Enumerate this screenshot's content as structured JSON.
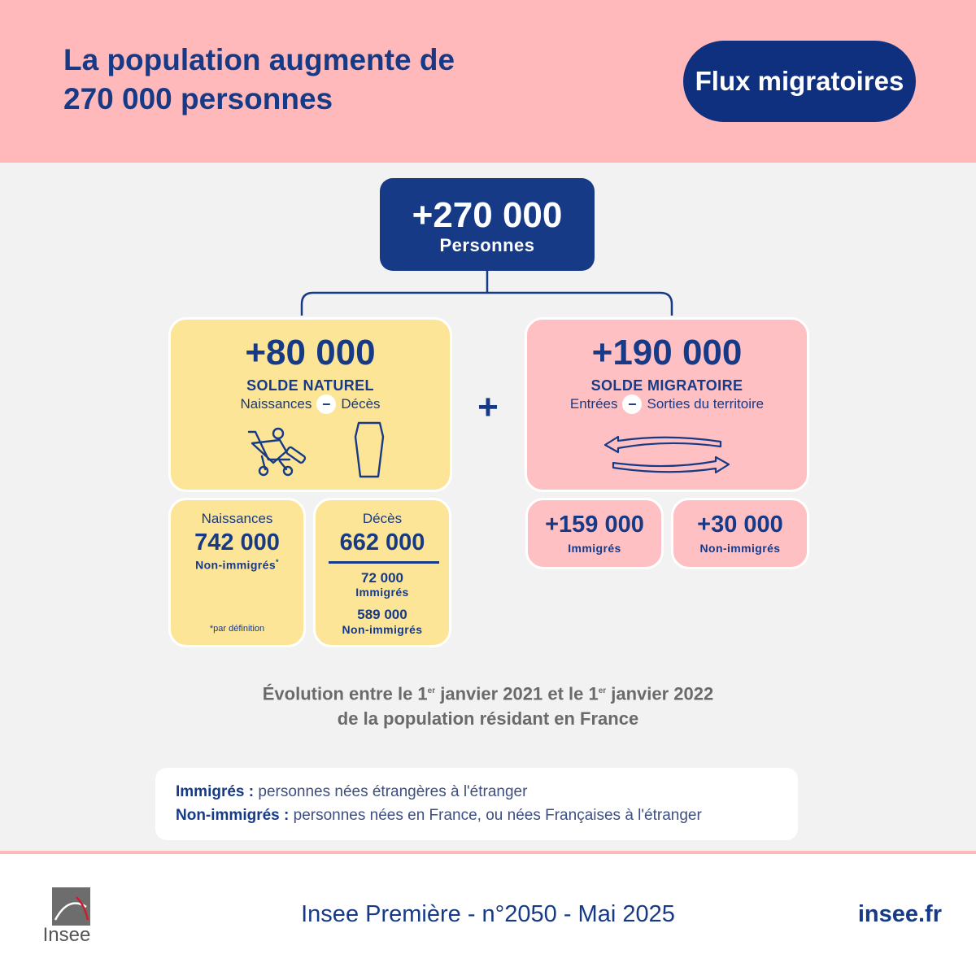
{
  "header": {
    "title_line1": "La population augmente de",
    "title_line2": "270 000 personnes",
    "topic": "Flux migratoires"
  },
  "total": {
    "value": "+270 000",
    "label": "Personnes"
  },
  "natural": {
    "value": "+80 000",
    "caption": "SOLDE NATUREL",
    "formula_left": "Naissances",
    "formula_op": "–",
    "formula_right": "Décès",
    "icons": [
      "stroller-icon",
      "coffin-icon"
    ]
  },
  "plus": "+",
  "migration": {
    "value": "+190 000",
    "caption": "SOLDE MIGRATOIRE",
    "formula_left": "Entrées",
    "formula_op": "–",
    "formula_right": "Sorties du territoire",
    "icons": [
      "exchange-arrows-icon"
    ]
  },
  "births": {
    "head": "Naissances",
    "value": "742 000",
    "label": "Non-immigrés",
    "label_mark": "*",
    "note": "*par définition"
  },
  "deaths": {
    "head": "Décès",
    "value": "662 000",
    "immigrants_value": "72 000",
    "immigrants_label": "Immigrés",
    "non_immigrants_value": "589 000",
    "non_immigrants_label": "Non-immigrés"
  },
  "immigrants_flow": {
    "value": "+159 000",
    "label": "Immigrés"
  },
  "non_immigrants_flow": {
    "value": "+30 000",
    "label": "Non-immigrés"
  },
  "evolution": {
    "line1_a": "Évolution entre le 1",
    "line1_sup1": "er",
    "line1_b": " janvier 2021 et le 1",
    "line1_sup2": "er",
    "line1_c": " janvier 2022",
    "line2": "de la population résidant en France"
  },
  "definitions": [
    {
      "term": "Immigrés :",
      "text": " personnes nées étrangères à l'étranger"
    },
    {
      "term": "Non-immigrés :",
      "text": " personnes nées en France, ou nées Françaises à l'étranger"
    }
  ],
  "footer": {
    "logo_text": "Insee",
    "publication": "Insee Première - n°2050 - Mai 2025",
    "site": "insee.fr"
  },
  "colors": {
    "navy": "#173a86",
    "header_pink": "#ffb9ba",
    "card_yellow": "#fde598",
    "card_pink": "#ffc0c4",
    "background": "#f2f2f2"
  }
}
